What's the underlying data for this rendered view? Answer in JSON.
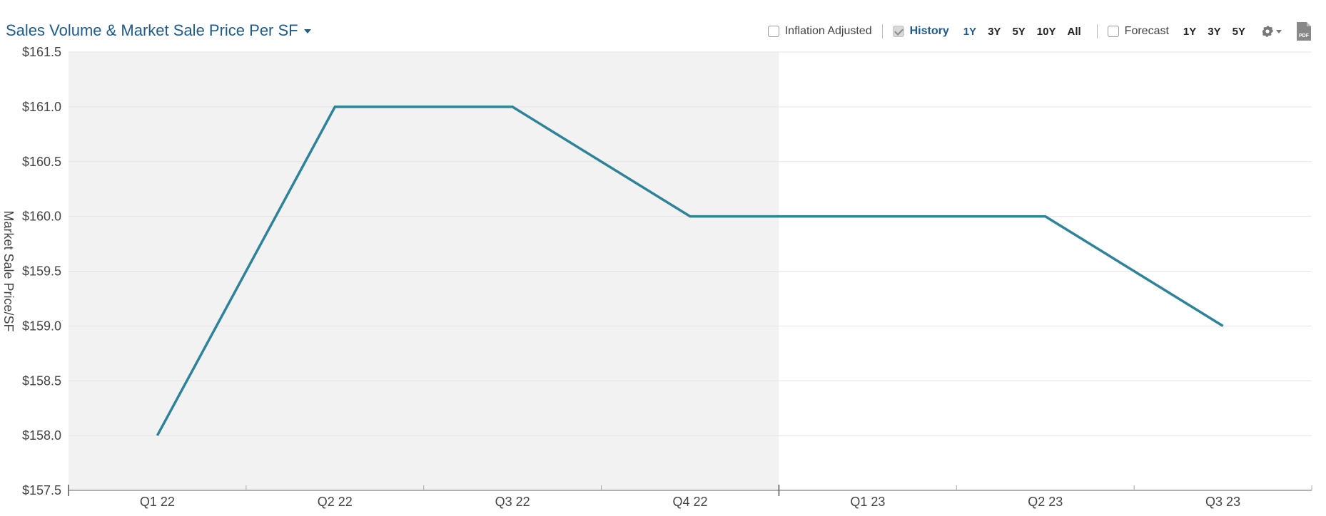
{
  "header": {
    "title": "Sales Volume & Market Sale Price Per SF",
    "inflation_label": "Inflation Adjusted",
    "history_label": "History",
    "history_ranges": [
      "1Y",
      "3Y",
      "5Y",
      "10Y",
      "All"
    ],
    "history_active": "1Y",
    "forecast_label": "Forecast",
    "forecast_ranges": [
      "1Y",
      "3Y",
      "5Y"
    ],
    "gear_icon": "gear-icon",
    "pdf_icon": "pdf-icon"
  },
  "colors": {
    "line": "#2e8299",
    "history_shade": "#f2f2f2",
    "accent": "#1f5a8a",
    "grid": "#e4e4e4"
  },
  "chart_data": {
    "type": "line",
    "ylabel": "Market Sale Price/SF",
    "categories": [
      "Q1 22",
      "Q2 22",
      "Q3 22",
      "Q4 22",
      "Q1 23",
      "Q2 23",
      "Q3 23"
    ],
    "series": [
      {
        "values": [
          158.0,
          161.0,
          161.0,
          160.0,
          160.0,
          160.0,
          159.0
        ]
      }
    ],
    "ylim": [
      157.5,
      161.5
    ],
    "yticks": [
      157.5,
      158.0,
      158.5,
      159.0,
      159.5,
      160.0,
      160.5,
      161.0,
      161.5
    ],
    "ytick_labels": [
      "$157.5",
      "$158.0",
      "$158.5",
      "$159.0",
      "$159.5",
      "$160.0",
      "$160.5",
      "$161.0",
      "$161.5"
    ],
    "history_end": "Q4 22",
    "grid": true
  }
}
